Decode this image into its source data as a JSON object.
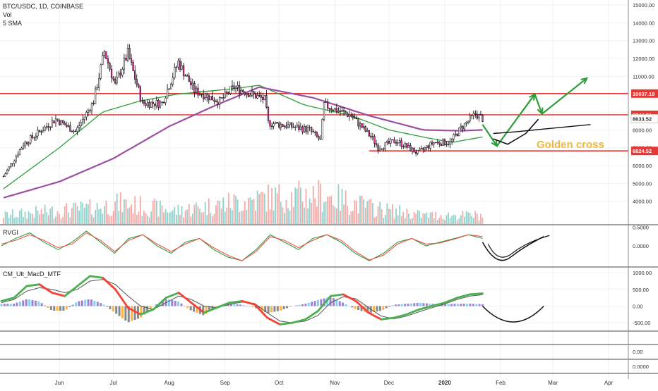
{
  "header": {
    "symbol_line": "BTC/USDC, 1D, COINBASE",
    "indicator_1": "Vol",
    "indicator_2": "5 SMA"
  },
  "colors": {
    "up": "#26a69a",
    "down": "#ef5350",
    "candle_up_body": "#ffffff",
    "candle_down_body": "#e040a0",
    "candle_wick": "#000000",
    "sma_fast": "#2e9e3a",
    "sma_slow": "#9c4fa0",
    "level_line": "#e53935",
    "annotation_green": "#2e9e3a",
    "annotation_black": "#111111",
    "golden_cross_text": "#f0b840",
    "axis_text": "#333333",
    "grid": "#f0f0f0"
  },
  "annotations": {
    "golden_cross": "Golden cross"
  },
  "panels": {
    "rvgi": {
      "title": "RVGI"
    },
    "macd": {
      "title": "CM_Ult_MacD_MTF"
    }
  },
  "chart_data": [
    {
      "type": "candlestick",
      "title": "BTC/USDC, 1D, COINBASE",
      "x_ticks": [
        "Jun",
        "Jul",
        "Aug",
        "Sep",
        "Oct",
        "Nov",
        "Dec",
        "2020",
        "Feb",
        "Mar",
        "Apr"
      ],
      "y_ticks": [
        4000,
        5000,
        6000,
        7000,
        8000,
        9000,
        10000,
        11000,
        12000,
        13000,
        14000,
        15000
      ],
      "y_tick_labels": [
        "4000.00",
        "5000.00",
        "6000.00",
        "7000.00",
        "8000.00",
        "9000.00",
        "10000.00",
        "11000.00",
        "12000.00",
        "13000.00",
        "14000.00",
        "15000.00"
      ],
      "ylim": [
        3200,
        15200
      ],
      "price_labels": [
        {
          "value": 10037.19,
          "label": "10037.19",
          "color": "#e53935"
        },
        {
          "value": 8844.81,
          "label": "8844.81",
          "color": "#e53935"
        },
        {
          "value": 8633.52,
          "label": "8633.52",
          "color": "#ffffff"
        },
        {
          "value": 6824.52,
          "label": "6824.52",
          "color": "#e53935"
        }
      ],
      "horizontal_levels": [
        10037.19,
        8844.81,
        6824.52
      ],
      "close_anchors": [
        {
          "date": "2019-05-01",
          "value": 5400
        },
        {
          "date": "2019-05-12",
          "value": 7200
        },
        {
          "date": "2019-05-30",
          "value": 8600
        },
        {
          "date": "2019-06-10",
          "value": 7900
        },
        {
          "date": "2019-06-20",
          "value": 9600
        },
        {
          "date": "2019-06-26",
          "value": 12400
        },
        {
          "date": "2019-07-02",
          "value": 10500
        },
        {
          "date": "2019-07-09",
          "value": 12300
        },
        {
          "date": "2019-07-17",
          "value": 9500
        },
        {
          "date": "2019-07-28",
          "value": 9500
        },
        {
          "date": "2019-08-06",
          "value": 11800
        },
        {
          "date": "2019-08-15",
          "value": 10200
        },
        {
          "date": "2019-08-29",
          "value": 9600
        },
        {
          "date": "2019-09-06",
          "value": 10400
        },
        {
          "date": "2019-09-23",
          "value": 9700
        },
        {
          "date": "2019-09-25",
          "value": 8400
        },
        {
          "date": "2019-10-08",
          "value": 8200
        },
        {
          "date": "2019-10-18",
          "value": 8000
        },
        {
          "date": "2019-10-24",
          "value": 7400
        },
        {
          "date": "2019-10-26",
          "value": 9400
        },
        {
          "date": "2019-11-10",
          "value": 8800
        },
        {
          "date": "2019-11-22",
          "value": 7500
        },
        {
          "date": "2019-11-25",
          "value": 7000
        },
        {
          "date": "2019-12-05",
          "value": 7400
        },
        {
          "date": "2019-12-17",
          "value": 6700
        },
        {
          "date": "2019-12-26",
          "value": 7300
        },
        {
          "date": "2020-01-04",
          "value": 7300
        },
        {
          "date": "2020-01-10",
          "value": 8100
        },
        {
          "date": "2020-01-18",
          "value": 8900
        },
        {
          "date": "2020-01-22",
          "value": 8633.52
        }
      ],
      "series": [
        {
          "name": "5 SMA",
          "color": "#2e9e3a",
          "values": [
            {
              "date": "2019-05-01",
              "value": 4700
            },
            {
              "date": "2019-06-01",
              "value": 7000
            },
            {
              "date": "2019-06-25",
              "value": 9000
            },
            {
              "date": "2019-07-15",
              "value": 9600
            },
            {
              "date": "2019-08-05",
              "value": 10000
            },
            {
              "date": "2019-09-05",
              "value": 10300
            },
            {
              "date": "2019-09-20",
              "value": 10500
            },
            {
              "date": "2019-10-15",
              "value": 9400
            },
            {
              "date": "2019-11-10",
              "value": 8800
            },
            {
              "date": "2019-12-01",
              "value": 8000
            },
            {
              "date": "2019-12-20",
              "value": 7600
            },
            {
              "date": "2020-01-05",
              "value": 7300
            },
            {
              "date": "2020-01-22",
              "value": 7600
            }
          ]
        },
        {
          "values": [
            {
              "date": "2019-05-01",
              "value": 4200
            },
            {
              "date": "2019-06-01",
              "value": 5100
            },
            {
              "date": "2019-07-01",
              "value": 6400
            },
            {
              "date": "2019-08-01",
              "value": 8200
            },
            {
              "date": "2019-08-25",
              "value": 9300
            },
            {
              "date": "2019-09-20",
              "value": 10400
            },
            {
              "date": "2019-10-20",
              "value": 9800
            },
            {
              "date": "2019-11-20",
              "value": 8800
            },
            {
              "date": "2019-12-20",
              "value": 8000
            },
            {
              "date": "2020-01-10",
              "value": 7950
            },
            {
              "date": "2020-01-22",
              "value": 8000
            }
          ]
        }
      ],
      "volume_anchors": [
        {
          "date": "2019-05-01",
          "value": 0.3
        },
        {
          "date": "2019-06-20",
          "value": 0.55
        },
        {
          "date": "2019-07-05",
          "value": 0.7
        },
        {
          "date": "2019-08-05",
          "value": 0.45
        },
        {
          "date": "2019-09-24",
          "value": 0.9
        },
        {
          "date": "2019-10-26",
          "value": 1.0
        },
        {
          "date": "2019-11-22",
          "value": 0.55
        },
        {
          "date": "2019-12-20",
          "value": 0.3
        },
        {
          "date": "2020-01-22",
          "value": 0.3
        }
      ],
      "projections": {
        "green_zigzag": [
          {
            "date": "2020-01-22",
            "value": 8300
          },
          {
            "date": "2020-01-30",
            "value": 7100
          },
          {
            "date": "2020-02-20",
            "value": 10000
          },
          {
            "date": "2020-02-24",
            "value": 8900
          },
          {
            "date": "2020-03-20",
            "value": 10900
          }
        ],
        "black_curve": [
          {
            "date": "2020-01-28",
            "value": 7500
          },
          {
            "date": "2020-02-05",
            "value": 7200
          },
          {
            "date": "2020-02-15",
            "value": 7800
          },
          {
            "date": "2020-02-22",
            "value": 8600
          }
        ],
        "purple_curve": [
          {
            "date": "2020-01-28",
            "value": 7800
          },
          {
            "date": "2020-02-10",
            "value": 7900
          },
          {
            "date": "2020-03-01",
            "value": 8100
          },
          {
            "date": "2020-03-22",
            "value": 8300
          }
        ]
      }
    },
    {
      "type": "line",
      "title": "RVGI",
      "y_ticks": [
        0.5,
        0.0
      ],
      "y_tick_labels": [
        "0.5000",
        "0.0000"
      ],
      "ylim": [
        -0.55,
        0.55
      ],
      "series": [
        {
          "color": "#2e9e3a",
          "values": [
            0.0,
            0.2,
            0.35,
            0.1,
            -0.1,
            0.1,
            0.4,
            0.1,
            -0.2,
            0.2,
            0.3,
            0.0,
            -0.2,
            0.1,
            0.2,
            -0.1,
            -0.3,
            -0.4,
            -0.1,
            0.3,
            0.1,
            -0.1,
            0.2,
            0.3,
            0.1,
            -0.2,
            -0.4,
            -0.2,
            0.1,
            0.2,
            0.0,
            0.1,
            0.2,
            0.3,
            0.2
          ]
        },
        {
          "color": "#ef5350",
          "values": [
            0.05,
            0.15,
            0.3,
            0.15,
            -0.05,
            0.05,
            0.35,
            0.15,
            -0.15,
            0.15,
            0.3,
            0.05,
            -0.15,
            0.05,
            0.2,
            -0.05,
            -0.25,
            -0.4,
            -0.15,
            0.25,
            0.15,
            -0.05,
            0.15,
            0.3,
            0.15,
            -0.15,
            -0.38,
            -0.25,
            0.05,
            0.2,
            0.05,
            0.08,
            0.18,
            0.3,
            0.25
          ]
        }
      ],
      "projection": {
        "date_start": "2020-01-22",
        "date_end": "2020-02-25"
      }
    },
    {
      "type": "bar",
      "title": "CM_Ult_MacD_MTF",
      "y_ticks": [
        1000,
        500,
        0,
        -500
      ],
      "y_tick_labels": [
        "1000.00",
        "500.00",
        "0.00",
        "-500.00"
      ],
      "ylim": [
        -750,
        1150
      ],
      "macd_points": [
        150,
        250,
        600,
        650,
        400,
        300,
        600,
        900,
        850,
        500,
        -50,
        -250,
        -100,
        250,
        400,
        100,
        -200,
        -50,
        100,
        150,
        50,
        -350,
        -550,
        -500,
        -400,
        -150,
        300,
        350,
        150,
        -200,
        -400,
        -350,
        -250,
        -100,
        0,
        100,
        250,
        350,
        380
      ],
      "signal_points": [
        100,
        200,
        450,
        550,
        500,
        400,
        500,
        750,
        800,
        650,
        300,
        0,
        -100,
        100,
        300,
        200,
        0,
        -50,
        50,
        120,
        80,
        -200,
        -450,
        -500,
        -450,
        -280,
        100,
        280,
        220,
        -50,
        -300,
        -380,
        -300,
        -170,
        -50,
        60,
        200,
        300,
        340
      ],
      "projection": {
        "date_start": "2020-01-22",
        "date_end": "2020-02-25"
      }
    },
    {
      "type": "line",
      "title": "",
      "y_ticks": [
        0.0
      ],
      "y_tick_labels": [
        "0.00"
      ]
    },
    {
      "type": "line",
      "title": "",
      "y_ticks": [
        0.0
      ],
      "y_tick_labels": [
        "0.0000"
      ]
    }
  ]
}
